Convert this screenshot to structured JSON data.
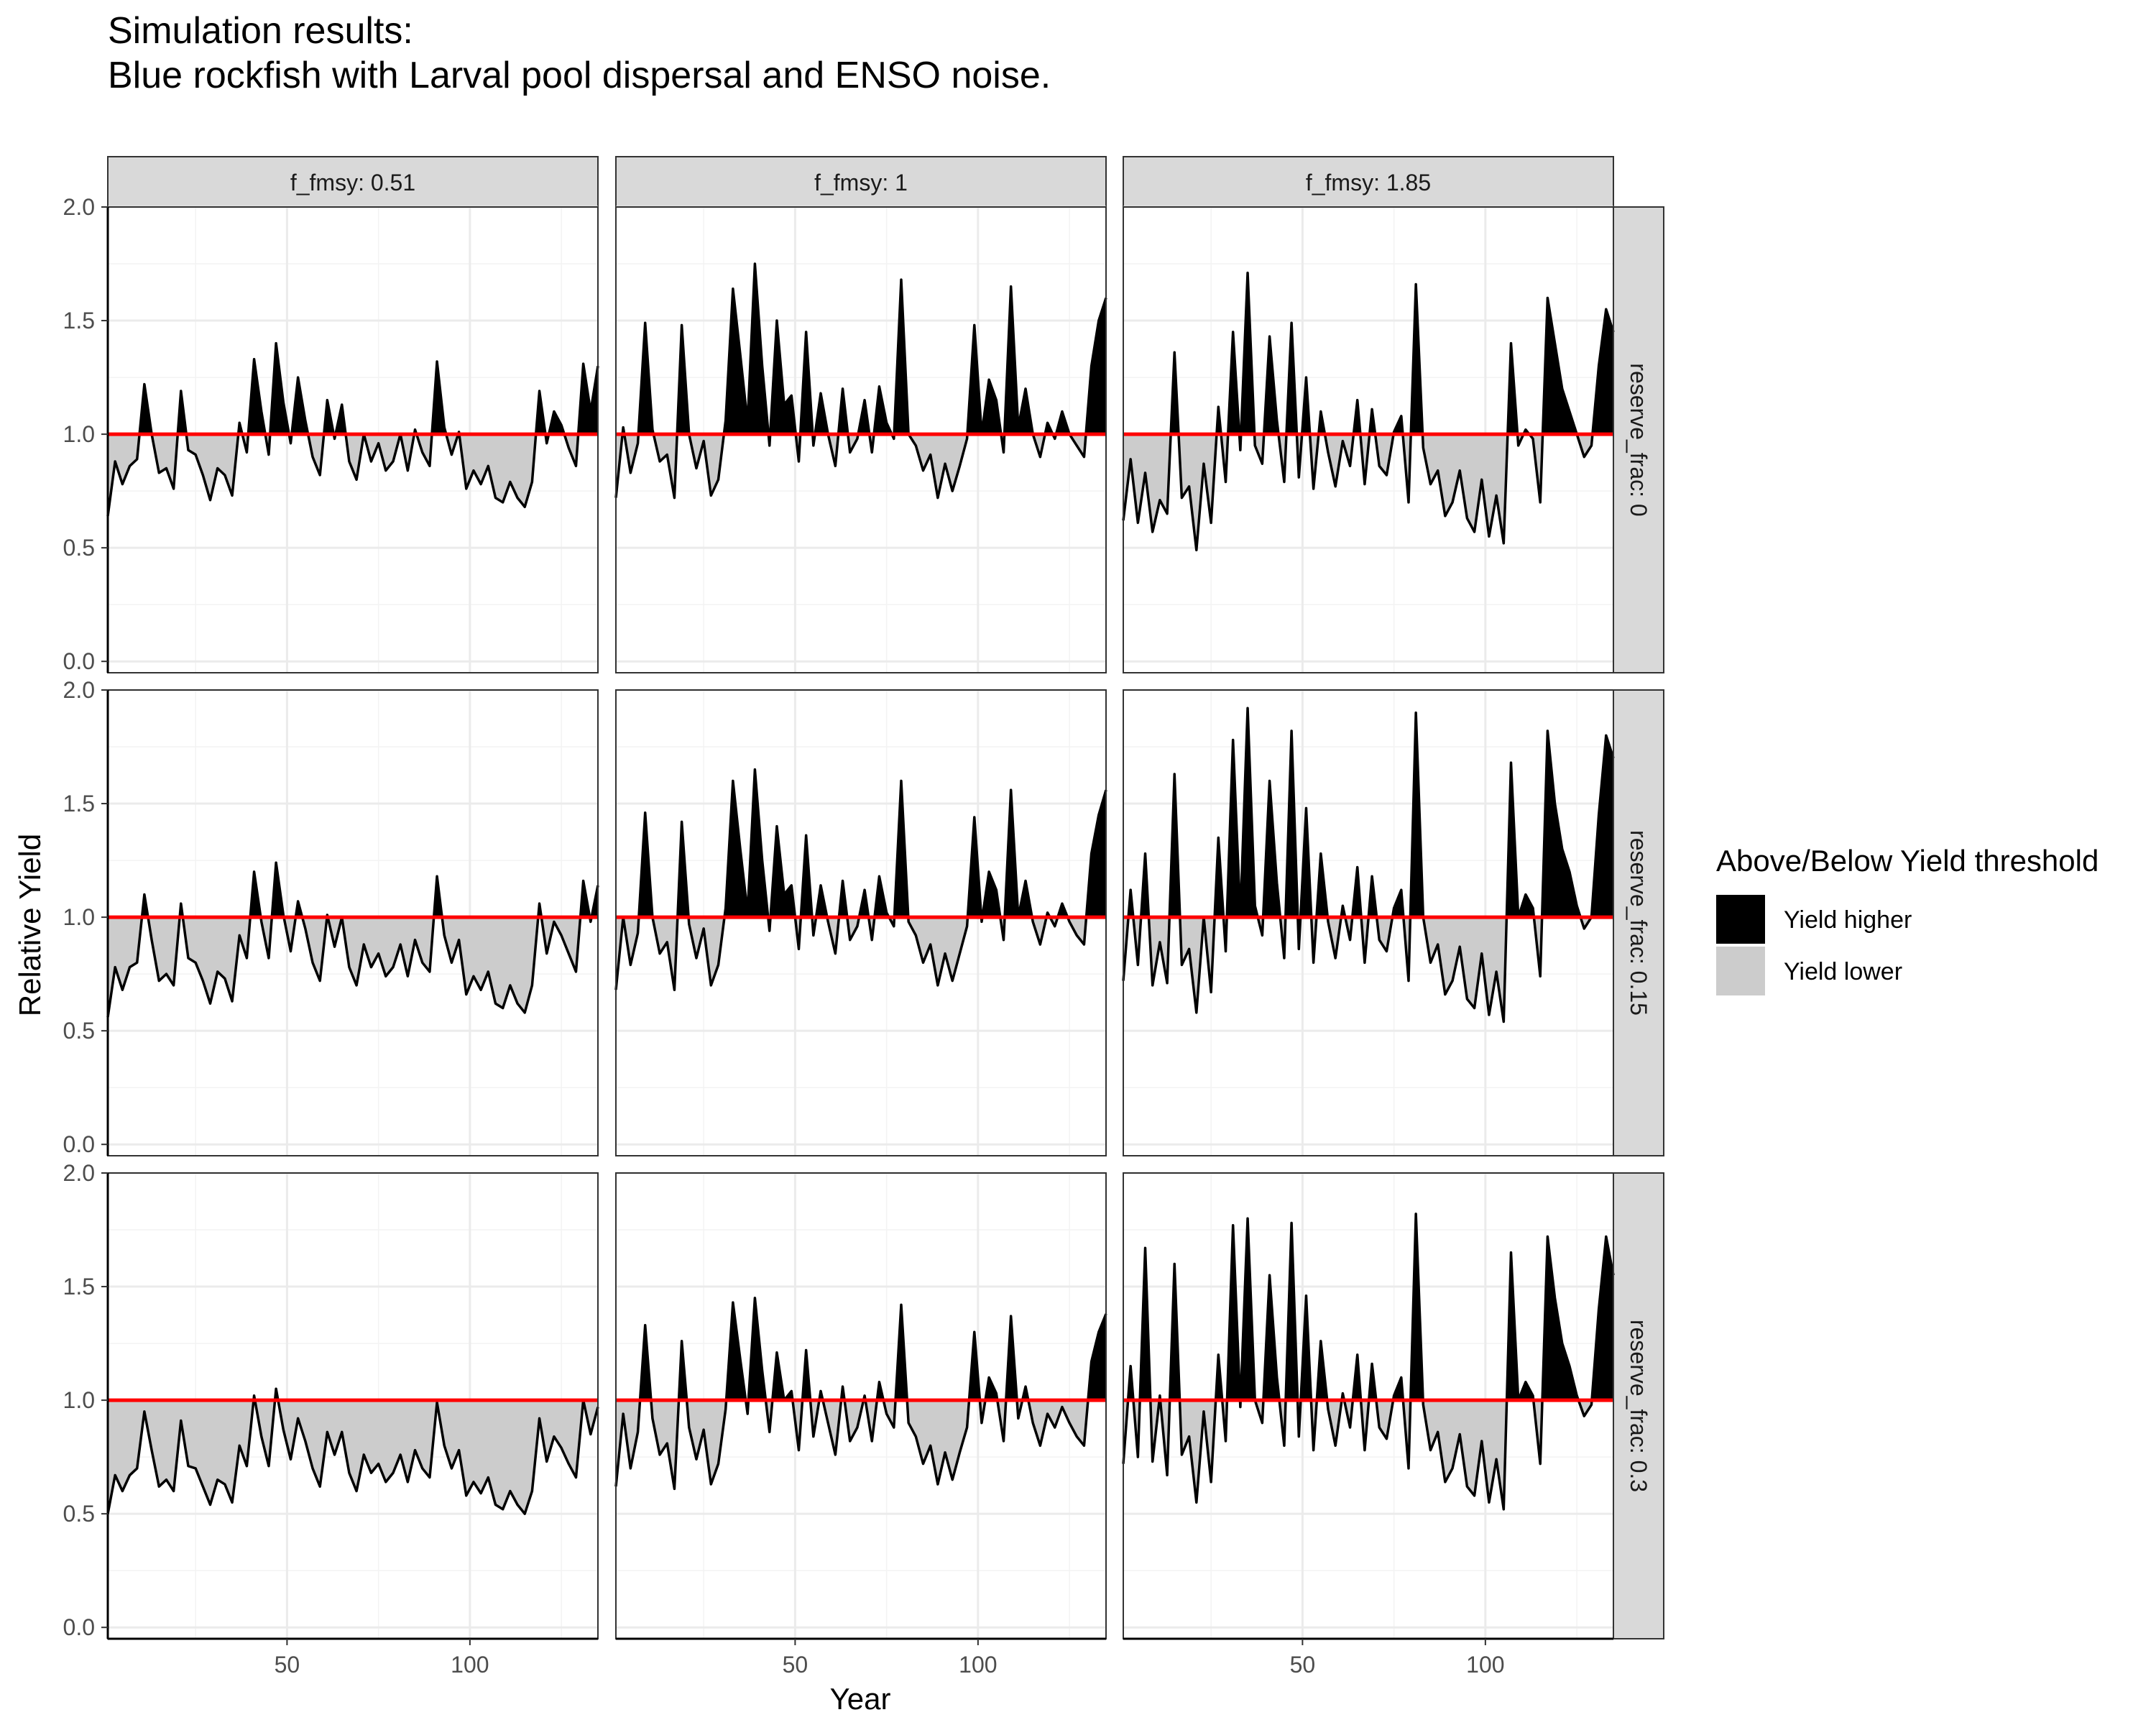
{
  "chart_data": {
    "type": "area",
    "title": "Simulation results:",
    "subtitle": "Blue rockfish with Larval pool dispersal and ENSO noise.",
    "xlabel": "Year",
    "ylabel": "Relative Yield",
    "xlim": [
      1,
      135
    ],
    "ylim": [
      -0.05,
      2.0
    ],
    "x_ticks": [
      50,
      100
    ],
    "y_ticks": [
      0.0,
      0.5,
      1.0,
      1.5,
      2.0
    ],
    "x_tick_labels": [
      "50",
      "100"
    ],
    "y_tick_labels": [
      "0.0",
      "0.5",
      "1.0",
      "1.5",
      "2.0"
    ],
    "threshold": 1.0,
    "threshold_color": "#ff0000",
    "grid": true,
    "col_facet_labels": [
      "f_fmsy: 0.51",
      "f_fmsy: 1",
      "f_fmsy: 1.85"
    ],
    "row_facet_labels": [
      "reserve_frac: 0",
      "reserve_frac: 0.15",
      "reserve_frac: 0.3"
    ],
    "legend": {
      "title": "Above/Below Yield threshold",
      "position": "right",
      "items": [
        {
          "label": "Yield higher",
          "color": "#000000"
        },
        {
          "label": "Yield lower",
          "color": "#cccccc"
        }
      ]
    },
    "colors": {
      "above": "#000000",
      "below": "#cccccc",
      "line": "#000000",
      "strip_bg": "#d9d9d9",
      "grid": "#ebebeb"
    },
    "series_x": [
      1,
      3,
      5,
      7,
      9,
      11,
      13,
      15,
      17,
      19,
      21,
      23,
      25,
      27,
      29,
      31,
      33,
      35,
      37,
      39,
      41,
      43,
      45,
      47,
      49,
      51,
      53,
      55,
      57,
      59,
      61,
      63,
      65,
      67,
      69,
      71,
      73,
      75,
      77,
      79,
      81,
      83,
      85,
      87,
      89,
      91,
      93,
      95,
      97,
      99,
      101,
      103,
      105,
      107,
      109,
      111,
      113,
      115,
      117,
      119,
      121,
      123,
      125,
      127,
      129,
      131,
      133,
      135
    ],
    "panels": [
      {
        "row": 0,
        "col": 0,
        "y": [
          0.64,
          0.88,
          0.78,
          0.86,
          0.89,
          1.22,
          1.0,
          0.83,
          0.85,
          0.76,
          1.19,
          0.93,
          0.91,
          0.82,
          0.71,
          0.85,
          0.82,
          0.73,
          1.05,
          0.92,
          1.33,
          1.1,
          0.91,
          1.4,
          1.14,
          0.96,
          1.25,
          1.06,
          0.9,
          0.82,
          1.15,
          0.98,
          1.13,
          0.88,
          0.8,
          1.0,
          0.88,
          0.96,
          0.84,
          0.88,
          1.0,
          0.84,
          1.02,
          0.92,
          0.86,
          1.32,
          1.03,
          0.91,
          1.01,
          0.76,
          0.84,
          0.78,
          0.86,
          0.72,
          0.7,
          0.79,
          0.72,
          0.68,
          0.79,
          1.19,
          0.96,
          1.1,
          1.04,
          0.94,
          0.86,
          1.31,
          1.1,
          1.3
        ]
      },
      {
        "row": 0,
        "col": 1,
        "y": [
          0.72,
          1.03,
          0.83,
          0.96,
          1.49,
          1.02,
          0.88,
          0.91,
          0.72,
          1.48,
          1.0,
          0.85,
          0.97,
          0.73,
          0.8,
          1.06,
          1.64,
          1.35,
          1.05,
          1.75,
          1.3,
          0.95,
          1.5,
          1.13,
          1.17,
          0.88,
          1.45,
          0.95,
          1.18,
          1.0,
          0.86,
          1.2,
          0.92,
          0.98,
          1.15,
          0.92,
          1.21,
          1.05,
          0.98,
          1.68,
          1.0,
          0.95,
          0.84,
          0.91,
          0.72,
          0.87,
          0.75,
          0.86,
          0.98,
          1.48,
          1.0,
          1.24,
          1.15,
          0.92,
          1.65,
          1.03,
          1.2,
          1.0,
          0.9,
          1.05,
          0.98,
          1.1,
          1.0,
          0.95,
          0.9,
          1.3,
          1.5,
          1.6
        ]
      },
      {
        "row": 0,
        "col": 2,
        "y": [
          0.62,
          0.89,
          0.61,
          0.83,
          0.57,
          0.71,
          0.65,
          1.36,
          0.72,
          0.77,
          0.49,
          0.87,
          0.61,
          1.12,
          0.79,
          1.45,
          0.93,
          1.71,
          0.95,
          0.87,
          1.43,
          1.06,
          0.79,
          1.49,
          0.81,
          1.25,
          0.76,
          1.1,
          0.92,
          0.77,
          0.97,
          0.86,
          1.15,
          0.78,
          1.11,
          0.86,
          0.82,
          1.01,
          1.08,
          0.7,
          1.66,
          0.94,
          0.78,
          0.84,
          0.64,
          0.7,
          0.84,
          0.63,
          0.57,
          0.8,
          0.55,
          0.73,
          0.52,
          1.4,
          0.95,
          1.02,
          0.98,
          0.7,
          1.6,
          1.4,
          1.2,
          1.1,
          1.0,
          0.9,
          0.95,
          1.3,
          1.55,
          1.45
        ]
      },
      {
        "row": 1,
        "col": 0,
        "y": [
          0.56,
          0.78,
          0.68,
          0.78,
          0.8,
          1.1,
          0.9,
          0.72,
          0.75,
          0.7,
          1.06,
          0.82,
          0.8,
          0.72,
          0.62,
          0.76,
          0.73,
          0.63,
          0.92,
          0.82,
          1.2,
          0.98,
          0.82,
          1.24,
          1.01,
          0.85,
          1.07,
          0.95,
          0.8,
          0.72,
          1.01,
          0.87,
          1.0,
          0.78,
          0.7,
          0.88,
          0.78,
          0.84,
          0.74,
          0.78,
          0.88,
          0.74,
          0.9,
          0.8,
          0.76,
          1.18,
          0.92,
          0.8,
          0.9,
          0.66,
          0.74,
          0.68,
          0.76,
          0.62,
          0.6,
          0.7,
          0.62,
          0.58,
          0.7,
          1.06,
          0.84,
          0.98,
          0.92,
          0.84,
          0.76,
          1.16,
          0.98,
          1.14
        ]
      },
      {
        "row": 1,
        "col": 1,
        "y": [
          0.68,
          1.0,
          0.79,
          0.93,
          1.46,
          1.0,
          0.84,
          0.89,
          0.68,
          1.42,
          0.97,
          0.82,
          0.95,
          0.7,
          0.79,
          1.04,
          1.6,
          1.3,
          1.02,
          1.65,
          1.25,
          0.94,
          1.4,
          1.1,
          1.14,
          0.86,
          1.36,
          0.92,
          1.14,
          0.98,
          0.84,
          1.16,
          0.9,
          0.96,
          1.12,
          0.9,
          1.18,
          1.02,
          0.96,
          1.6,
          0.98,
          0.92,
          0.8,
          0.88,
          0.7,
          0.84,
          0.72,
          0.84,
          0.96,
          1.44,
          0.98,
          1.2,
          1.12,
          0.9,
          1.56,
          1.0,
          1.16,
          0.98,
          0.88,
          1.02,
          0.96,
          1.06,
          0.98,
          0.92,
          0.88,
          1.28,
          1.45,
          1.56
        ]
      },
      {
        "row": 1,
        "col": 2,
        "y": [
          0.72,
          1.12,
          0.79,
          1.28,
          0.7,
          0.89,
          0.71,
          1.63,
          0.79,
          0.86,
          0.58,
          1.0,
          0.67,
          1.35,
          0.85,
          1.78,
          1.0,
          1.92,
          1.05,
          0.92,
          1.6,
          1.15,
          0.82,
          1.82,
          0.86,
          1.48,
          0.8,
          1.28,
          0.98,
          0.82,
          1.05,
          0.9,
          1.22,
          0.8,
          1.18,
          0.9,
          0.85,
          1.04,
          1.12,
          0.72,
          1.9,
          1.0,
          0.8,
          0.88,
          0.66,
          0.72,
          0.87,
          0.64,
          0.6,
          0.84,
          0.57,
          0.76,
          0.54,
          1.68,
          1.0,
          1.1,
          1.04,
          0.74,
          1.82,
          1.5,
          1.3,
          1.2,
          1.05,
          0.95,
          1.0,
          1.45,
          1.8,
          1.7
        ]
      },
      {
        "row": 2,
        "col": 0,
        "y": [
          0.5,
          0.67,
          0.6,
          0.67,
          0.7,
          0.95,
          0.78,
          0.62,
          0.65,
          0.6,
          0.91,
          0.71,
          0.7,
          0.62,
          0.54,
          0.65,
          0.63,
          0.55,
          0.8,
          0.71,
          1.02,
          0.84,
          0.71,
          1.05,
          0.87,
          0.74,
          0.92,
          0.82,
          0.7,
          0.62,
          0.86,
          0.76,
          0.86,
          0.68,
          0.6,
          0.76,
          0.68,
          0.72,
          0.64,
          0.68,
          0.76,
          0.64,
          0.78,
          0.7,
          0.66,
          0.99,
          0.8,
          0.7,
          0.78,
          0.58,
          0.64,
          0.59,
          0.66,
          0.54,
          0.52,
          0.6,
          0.54,
          0.5,
          0.6,
          0.92,
          0.73,
          0.84,
          0.79,
          0.72,
          0.66,
          1.0,
          0.85,
          0.97
        ]
      },
      {
        "row": 2,
        "col": 1,
        "y": [
          0.62,
          0.94,
          0.7,
          0.86,
          1.33,
          0.92,
          0.76,
          0.81,
          0.61,
          1.26,
          0.88,
          0.74,
          0.87,
          0.63,
          0.72,
          0.96,
          1.43,
          1.18,
          0.94,
          1.45,
          1.13,
          0.86,
          1.21,
          1.0,
          1.04,
          0.78,
          1.22,
          0.84,
          1.04,
          0.9,
          0.76,
          1.06,
          0.82,
          0.88,
          1.02,
          0.82,
          1.08,
          0.94,
          0.88,
          1.42,
          0.9,
          0.84,
          0.72,
          0.8,
          0.63,
          0.77,
          0.65,
          0.77,
          0.88,
          1.3,
          0.9,
          1.1,
          1.03,
          0.82,
          1.37,
          0.92,
          1.06,
          0.9,
          0.8,
          0.94,
          0.88,
          0.97,
          0.9,
          0.84,
          0.8,
          1.17,
          1.3,
          1.38
        ]
      },
      {
        "row": 2,
        "col": 2,
        "y": [
          0.72,
          1.15,
          0.75,
          1.67,
          0.73,
          1.02,
          0.67,
          1.6,
          0.76,
          0.84,
          0.55,
          0.95,
          0.64,
          1.2,
          0.82,
          1.77,
          0.97,
          1.8,
          1.0,
          0.9,
          1.55,
          1.1,
          0.8,
          1.78,
          0.84,
          1.46,
          0.78,
          1.26,
          0.96,
          0.8,
          1.03,
          0.88,
          1.2,
          0.78,
          1.16,
          0.88,
          0.83,
          1.02,
          1.1,
          0.7,
          1.82,
          0.98,
          0.78,
          0.86,
          0.64,
          0.7,
          0.85,
          0.62,
          0.58,
          0.82,
          0.55,
          0.74,
          0.52,
          1.65,
          1.0,
          1.08,
          1.02,
          0.72,
          1.72,
          1.45,
          1.25,
          1.15,
          1.02,
          0.93,
          0.98,
          1.4,
          1.72,
          1.55
        ]
      }
    ]
  }
}
